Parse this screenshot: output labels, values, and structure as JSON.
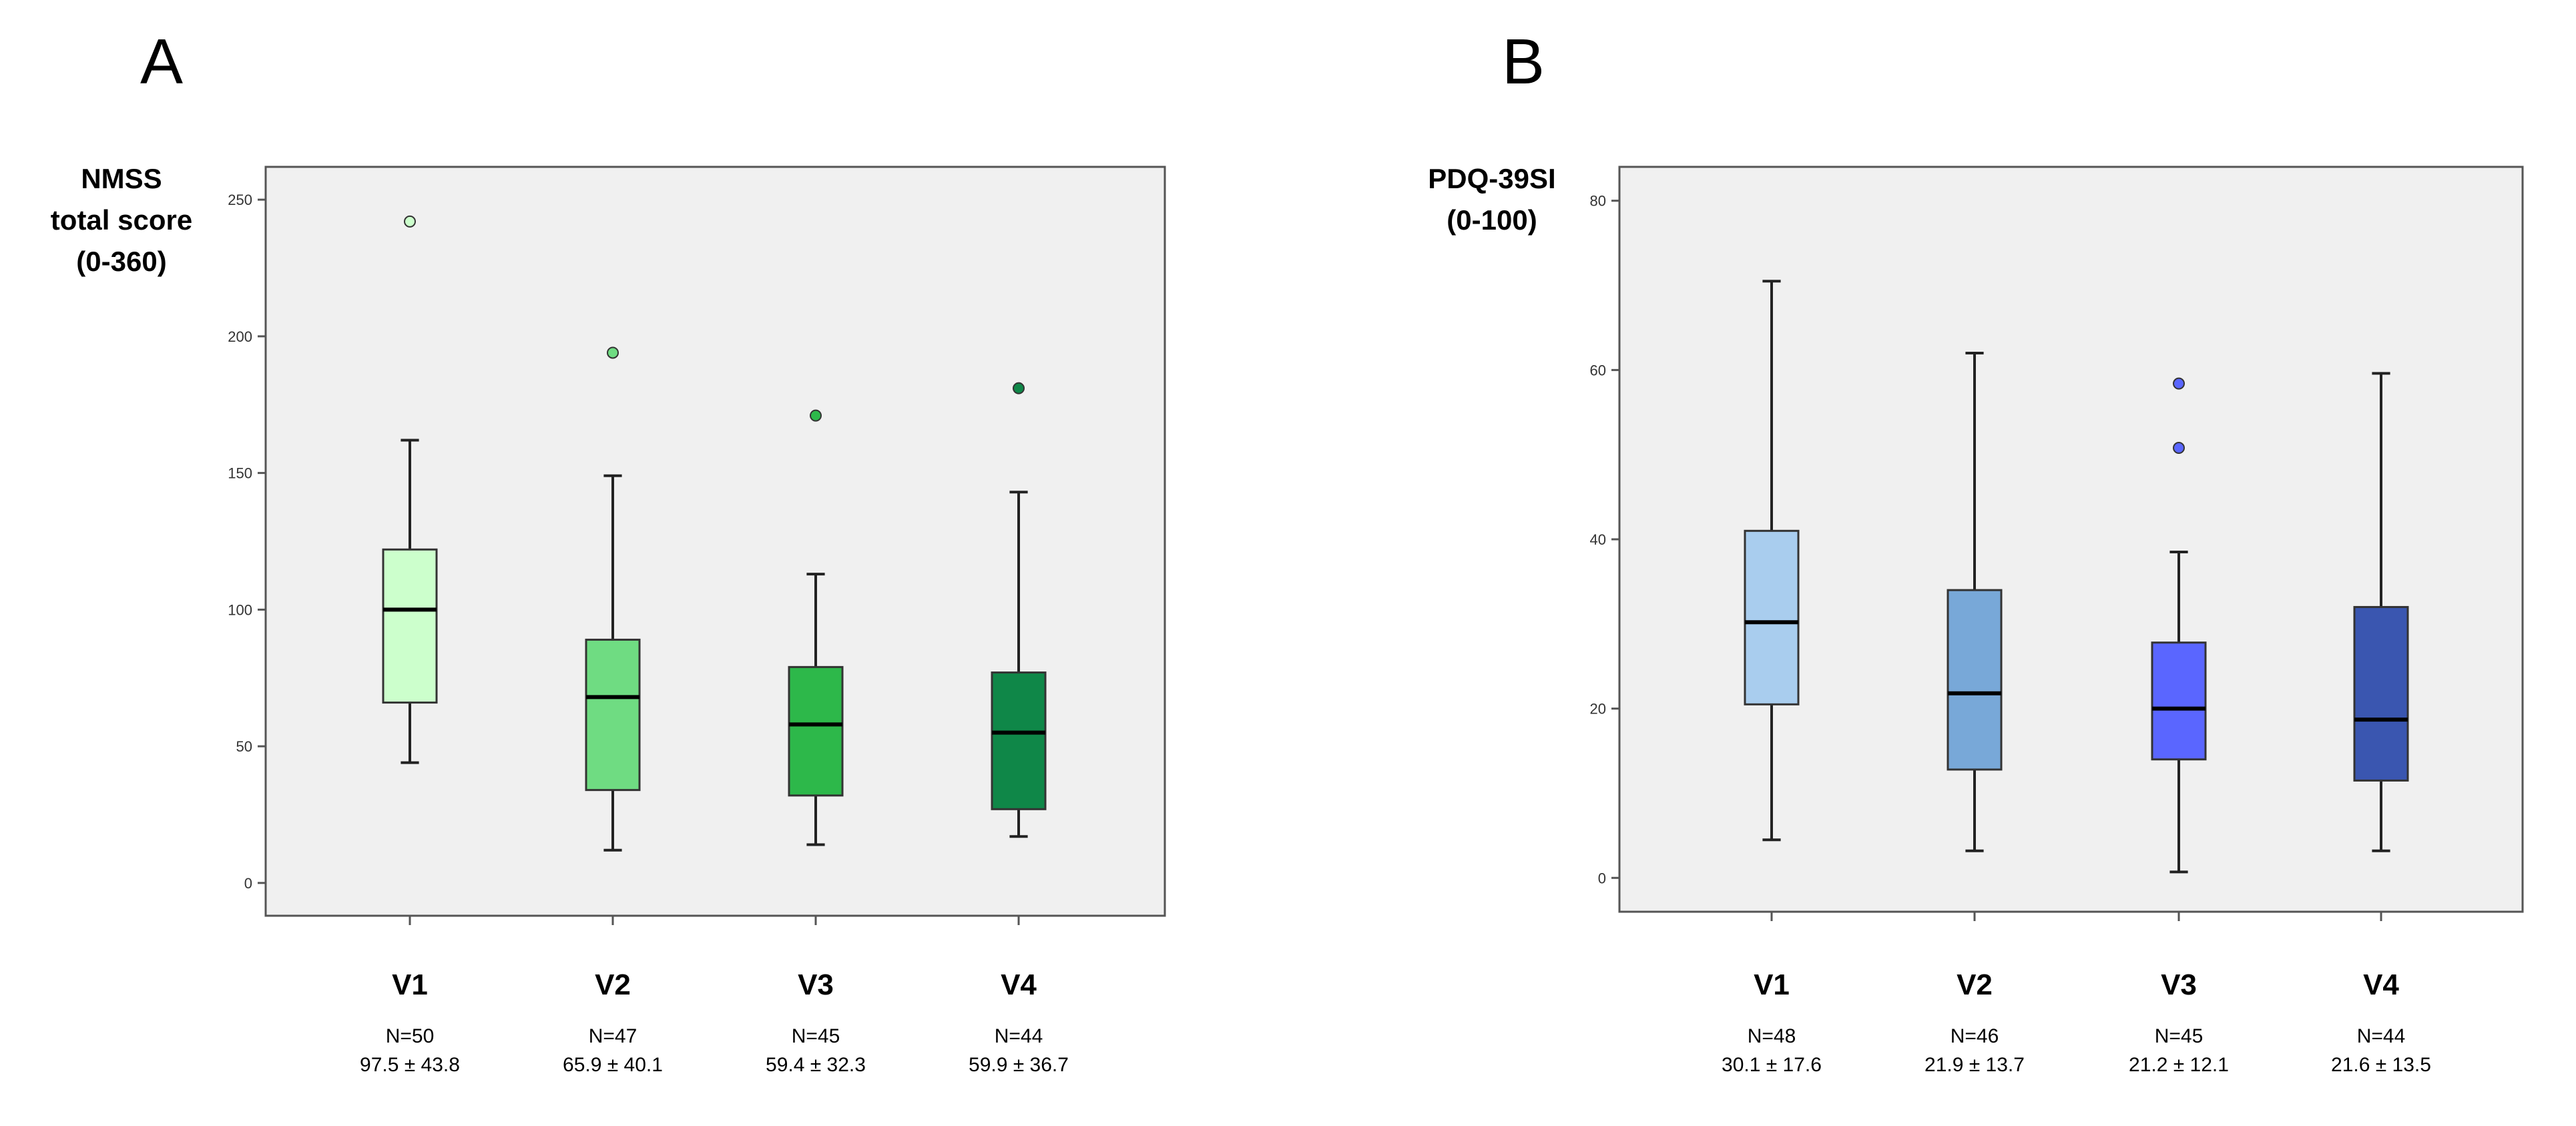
{
  "chart_data": [
    {
      "type": "boxplot",
      "panel_label": "A",
      "ylabel": [
        "NMSS",
        "total score",
        "(0-360)"
      ],
      "ylim": [
        -12,
        262
      ],
      "yticks": [
        0,
        50,
        100,
        150,
        200,
        250
      ],
      "categories": [
        "V1",
        "V2",
        "V3",
        "V4"
      ],
      "n_labels": [
        "N=50",
        "N=47",
        "N=45",
        "N=44"
      ],
      "stats_labels": [
        "97.5 ± 43.8",
        "65.9 ± 40.1",
        "59.4 ± 32.3",
        "59.9 ± 36.7"
      ],
      "colors": [
        "#ccffcc",
        "#6fdc82",
        "#2db84a",
        "#0f8748"
      ],
      "boxes": [
        {
          "whisker_low": 44,
          "q1": 66,
          "median": 100,
          "q3": 122,
          "whisker_high": 162,
          "outliers": [
            242
          ]
        },
        {
          "whisker_low": 12,
          "q1": 34,
          "median": 68,
          "q3": 89,
          "whisker_high": 149,
          "outliers": [
            194
          ]
        },
        {
          "whisker_low": 14,
          "q1": 32,
          "median": 58,
          "q3": 79,
          "whisker_high": 113,
          "outliers": [
            171
          ]
        },
        {
          "whisker_low": 17,
          "q1": 27,
          "median": 55,
          "q3": 77,
          "whisker_high": 143,
          "outliers": [
            181
          ]
        }
      ]
    },
    {
      "type": "boxplot",
      "panel_label": "B",
      "ylabel": [
        "PDQ-39SI",
        "(0-100)"
      ],
      "ylim": [
        -4,
        84
      ],
      "yticks": [
        0,
        20,
        40,
        60,
        80
      ],
      "categories": [
        "V1",
        "V2",
        "V3",
        "V4"
      ],
      "n_labels": [
        "N=48",
        "N=46",
        "N=45",
        "N=44"
      ],
      "stats_labels": [
        "30.1 ± 17.6",
        "21.9 ± 13.7",
        "21.2 ± 12.1",
        "21.6 ± 13.5"
      ],
      "colors": [
        "#a9cdee",
        "#78a8d8",
        "#5a66ff",
        "#3a56b0"
      ],
      "boxes": [
        {
          "whisker_low": 4.5,
          "q1": 20.5,
          "median": 30.2,
          "q3": 41,
          "whisker_high": 70.5,
          "outliers": []
        },
        {
          "whisker_low": 3.2,
          "q1": 12.8,
          "median": 21.8,
          "q3": 34,
          "whisker_high": 62,
          "outliers": []
        },
        {
          "whisker_low": 0.7,
          "q1": 14,
          "median": 20,
          "q3": 27.8,
          "whisker_high": 38.5,
          "outliers": [
            58.4,
            50.8
          ]
        },
        {
          "whisker_low": 3.2,
          "q1": 11.5,
          "median": 18.7,
          "q3": 32,
          "whisker_high": 59.6,
          "outliers": []
        }
      ]
    }
  ]
}
